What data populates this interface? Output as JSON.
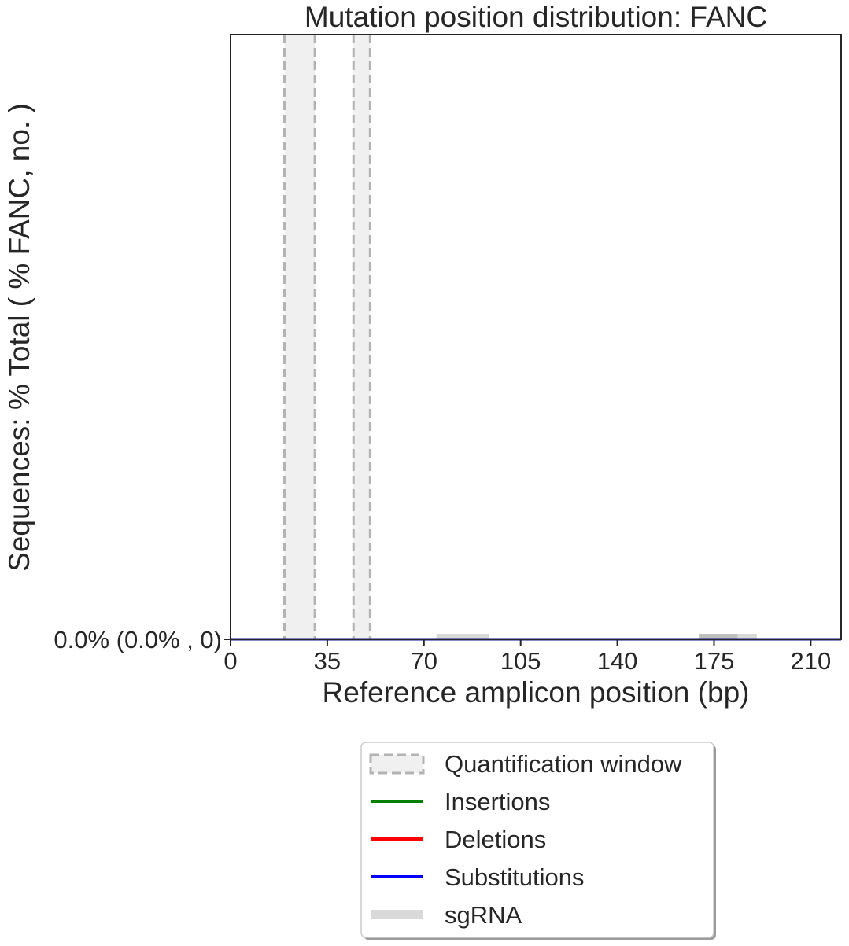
{
  "chart_data": {
    "type": "line",
    "title": "Mutation position distribution: FANC",
    "xlabel": "Reference amplicon position (bp)",
    "ylabel": "Sequences: % Total ( % FANC, no. )",
    "xlim": [
      0,
      221
    ],
    "ylim": [
      0,
      1
    ],
    "x_ticks": [
      0,
      35,
      70,
      105,
      140,
      175,
      210
    ],
    "x_tick_labels": [
      "0",
      "35",
      "70",
      "105",
      "140",
      "175",
      "210"
    ],
    "y_ticks": [
      0
    ],
    "y_tick_labels": [
      "0.0% (0.0% , 0)"
    ],
    "quantification_windows": [
      {
        "start": 19.5,
        "end": 30.5
      },
      {
        "start": 44.5,
        "end": 50.5
      }
    ],
    "sgrna_regions": [
      {
        "start": 74.5,
        "end": 93.5
      },
      {
        "start": 169.5,
        "end": 190.5
      }
    ],
    "sgrna_highlight": {
      "start": 169.5,
      "end": 183.5
    },
    "series": [
      {
        "name": "Insertions",
        "color": "#008000",
        "x": [
          0,
          221
        ],
        "y": [
          0,
          0
        ]
      },
      {
        "name": "Deletions",
        "color": "#ff0000",
        "x": [
          0,
          221
        ],
        "y": [
          0,
          0
        ]
      },
      {
        "name": "Substitutions",
        "color": "#0000ff",
        "x": [
          0,
          221
        ],
        "y": [
          0,
          0
        ]
      }
    ],
    "legend": {
      "placement": "below",
      "entries": [
        {
          "label": "Quantification window",
          "kind": "window"
        },
        {
          "label": "Insertions",
          "kind": "line",
          "color": "#008000"
        },
        {
          "label": "Deletions",
          "kind": "line",
          "color": "#ff0000"
        },
        {
          "label": "Substitutions",
          "kind": "line",
          "color": "#0000ff"
        },
        {
          "label": "sgRNA",
          "kind": "thick",
          "color": "#d9d9d9"
        }
      ]
    },
    "grid": false,
    "colors": {
      "window_fill": "#f0f0f0",
      "window_edge": "#b3b3b3",
      "sgrna": "#d9d9d9",
      "sgrna_dark": "#aaaaaa",
      "axes": "#262626"
    }
  }
}
